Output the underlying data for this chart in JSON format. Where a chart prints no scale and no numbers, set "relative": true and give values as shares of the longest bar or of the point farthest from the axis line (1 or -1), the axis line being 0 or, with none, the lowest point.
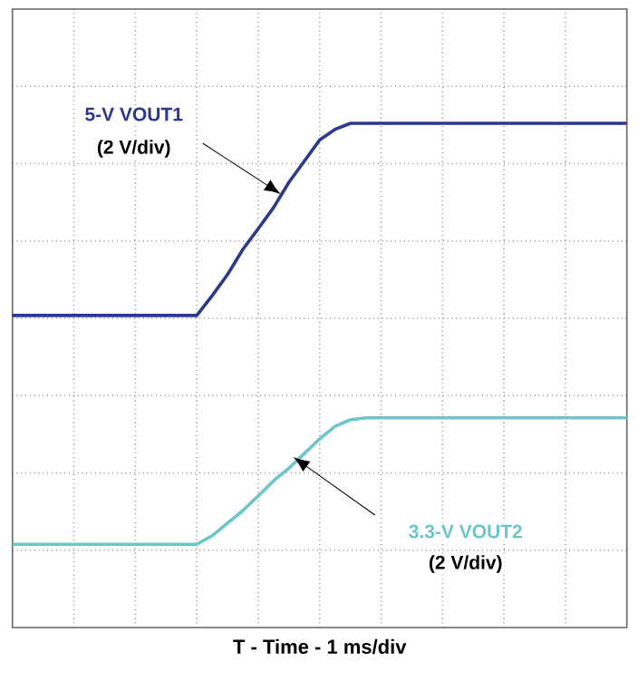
{
  "chart_data": {
    "type": "line",
    "relative": true,
    "xlabel": "T - Time - 1 ms/div",
    "grid": true,
    "categories": [
      null,
      null,
      null,
      null,
      null,
      null,
      null,
      null,
      null,
      null,
      null,
      null,
      null,
      null,
      null,
      null,
      null,
      null,
      null,
      null,
      null,
      null,
      null,
      null,
      null,
      null,
      null,
      null,
      null,
      null,
      null,
      null,
      null,
      null,
      null,
      null,
      null,
      null,
      null,
      null,
      null
    ],
    "series": [
      {
        "name": "5-V VOUT1",
        "color": "#2b3a8f",
        "values": [
          0.619,
          0.619,
          0.619,
          0.619,
          0.619,
          0.619,
          0.619,
          0.619,
          0.619,
          0.619,
          0.619,
          0.619,
          0.619,
          0.658,
          0.7,
          0.75,
          0.791,
          0.833,
          0.883,
          0.925,
          0.967,
          0.988,
          1.0,
          1.0,
          1.0,
          1.0,
          1.0,
          1.0,
          1.0,
          1.0,
          1.0,
          1.0,
          1.0,
          1.0,
          1.0,
          1.0,
          1.0,
          1.0,
          1.0,
          1.0,
          1.0
        ]
      },
      {
        "name": "3.3-V VOUT2",
        "color": "#6cc5c8",
        "values": [
          0.165,
          0.165,
          0.165,
          0.165,
          0.165,
          0.165,
          0.165,
          0.165,
          0.165,
          0.165,
          0.165,
          0.165,
          0.165,
          0.182,
          0.207,
          0.232,
          0.261,
          0.291,
          0.316,
          0.345,
          0.374,
          0.399,
          0.412,
          0.416,
          0.416,
          0.416,
          0.416,
          0.416,
          0.416,
          0.416,
          0.416,
          0.416,
          0.416,
          0.416,
          0.416,
          0.416,
          0.416,
          0.416,
          0.416,
          0.416,
          0.416
        ]
      }
    ],
    "annotations": [
      "(2 V/div)",
      "(2 V/div)"
    ]
  }
}
